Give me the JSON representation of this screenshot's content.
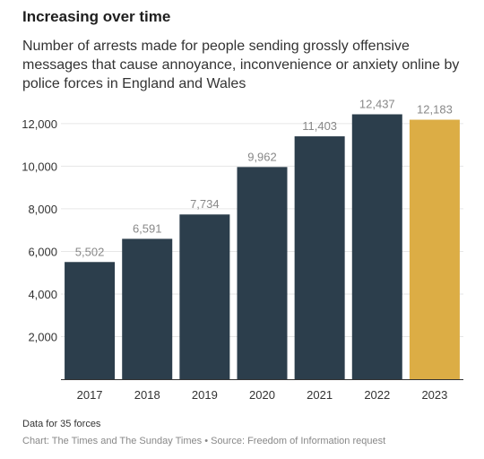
{
  "title": "Increasing over time",
  "subtitle": "Number of arrests made for people sending grossly offensive messages that cause annoyance, inconvenience or anxiety online by police forces in England and Wales",
  "note": "Data for 35 forces",
  "source": "Chart: The Times and The Sunday Times • Source: Freedom of Information request",
  "chart_data": {
    "type": "bar",
    "categories": [
      "2017",
      "2018",
      "2019",
      "2020",
      "2021",
      "2022",
      "2023"
    ],
    "values": [
      5502,
      6591,
      7734,
      9962,
      11403,
      12437,
      12183
    ],
    "value_labels": [
      "5,502",
      "6,591",
      "7,734",
      "9,962",
      "11,403",
      "12,437",
      "12,183"
    ],
    "yticks": [
      2000,
      4000,
      6000,
      8000,
      10000,
      12000
    ],
    "ytick_labels": [
      "2,000",
      "4,000",
      "6,000",
      "8,000",
      "10,000",
      "12,000"
    ],
    "ylim": [
      0,
      12500
    ],
    "grid": true,
    "colors": {
      "bar": "#2c3e4c",
      "highlight": "#dcad45",
      "label": "#888888",
      "grid": "#e6e6e6",
      "axis": "#333333"
    },
    "highlight_index": 6
  }
}
